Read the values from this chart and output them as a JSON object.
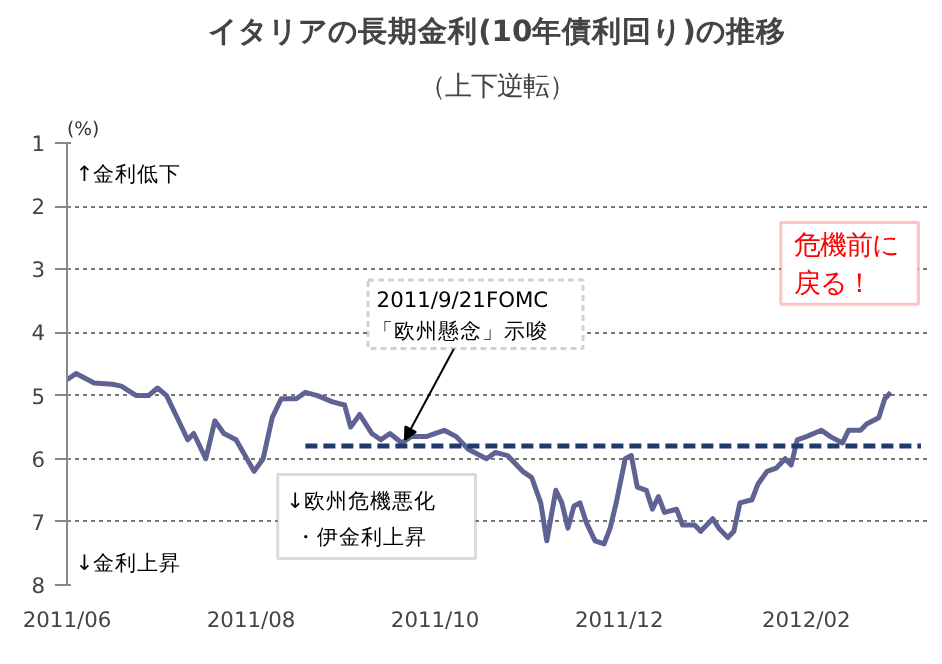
{
  "chart_data": {
    "type": "line",
    "title": "イタリアの長期金利(10年債利回り)の推移",
    "subtitle": "（上下逆転）",
    "ylabel": "(%)",
    "x": [
      "2011-06-01",
      "2011-06-04",
      "2011-06-10",
      "2011-06-16",
      "2011-06-19",
      "2011-06-24",
      "2011-06-28",
      "2011-07-01",
      "2011-07-04",
      "2011-07-07",
      "2011-07-11",
      "2011-07-13",
      "2011-07-17",
      "2011-07-20",
      "2011-07-23",
      "2011-07-27",
      "2011-07-30",
      "2011-08-02",
      "2011-08-05",
      "2011-08-08",
      "2011-08-11",
      "2011-08-16",
      "2011-08-19",
      "2011-08-23",
      "2011-08-28",
      "2011-09-01",
      "2011-09-03",
      "2011-09-06",
      "2011-09-10",
      "2011-09-13",
      "2011-09-16",
      "2011-09-20",
      "2011-09-23",
      "2011-09-28",
      "2011-10-04",
      "2011-10-08",
      "2011-10-12",
      "2011-10-18",
      "2011-10-21",
      "2011-10-25",
      "2011-10-30",
      "2011-11-02",
      "2011-11-05",
      "2011-11-07",
      "2011-11-10",
      "2011-11-12",
      "2011-11-14",
      "2011-11-16",
      "2011-11-18",
      "2011-11-20",
      "2011-11-23",
      "2011-11-26",
      "2011-11-28",
      "2011-11-30",
      "2011-12-03",
      "2011-12-05",
      "2011-12-07",
      "2011-12-10",
      "2011-12-12",
      "2011-12-14",
      "2011-12-16",
      "2011-12-20",
      "2011-12-22",
      "2011-12-26",
      "2011-12-28",
      "2012-01-01",
      "2012-01-03",
      "2012-01-06",
      "2012-01-08",
      "2012-01-10",
      "2012-01-14",
      "2012-01-16",
      "2012-01-19",
      "2012-01-22",
      "2012-01-25",
      "2012-01-27",
      "2012-01-29",
      "2012-02-01",
      "2012-02-06",
      "2012-02-09",
      "2012-02-13",
      "2012-02-15",
      "2012-02-19",
      "2012-02-21",
      "2012-02-25",
      "2012-02-27",
      "2012-02-29"
    ],
    "series": [
      {
        "color": "#5f6394",
        "values": [
          4.75,
          4.65,
          4.8,
          4.82,
          4.85,
          5.0,
          5.0,
          4.88,
          5.0,
          5.3,
          5.7,
          5.6,
          6.0,
          5.4,
          5.6,
          5.7,
          5.95,
          6.2,
          6.0,
          5.35,
          5.05,
          5.05,
          4.95,
          5.0,
          5.1,
          5.15,
          5.5,
          5.3,
          5.6,
          5.7,
          5.6,
          5.75,
          5.65,
          5.65,
          5.55,
          5.65,
          5.85,
          6.0,
          5.9,
          5.95,
          6.2,
          6.3,
          6.7,
          7.3,
          6.5,
          6.7,
          7.1,
          6.75,
          6.7,
          7.0,
          7.3,
          7.35,
          7.1,
          6.7,
          6.0,
          5.95,
          6.45,
          6.5,
          6.8,
          6.6,
          6.85,
          6.8,
          7.05,
          7.05,
          7.15,
          6.95,
          7.1,
          7.25,
          7.15,
          6.7,
          6.65,
          6.4,
          6.2,
          6.15,
          6.0,
          6.1,
          5.7,
          5.65,
          5.55,
          5.65,
          5.75,
          5.55,
          5.55,
          5.45,
          5.35,
          5.05,
          4.95
        ]
      },
      {
        "color": "#1f3a6e",
        "line_style": "dashed",
        "x": [
          "2011-08-19",
          "2012-03-10"
        ],
        "values": [
          5.8,
          5.8
        ]
      }
    ],
    "xlim": [
      "2011-06-01",
      "2012-03-12"
    ],
    "ylim": [
      8,
      1
    ],
    "xticks": [
      {
        "value": "2011-06-01",
        "label": "2011/06"
      },
      {
        "value": "2011-08-01",
        "label": "2011/08"
      },
      {
        "value": "2011-10-01",
        "label": "2011/10"
      },
      {
        "value": "2011-12-01",
        "label": "2011/12"
      },
      {
        "value": "2012-02-01",
        "label": "2012/02"
      }
    ],
    "yticks": [
      1,
      2,
      3,
      4,
      5,
      6,
      7,
      8
    ],
    "grid": "y",
    "line_style": "solid",
    "marker": "none",
    "annotations": [
      "↑金利低下",
      "↓金利上昇",
      "↓欧州危機悪化",
      "・伊金利上昇",
      "2011/9/21FOMC",
      {
        "text": "「欧州懸念」示唆",
        "x": "2011-09-21",
        "y": 5.7
      },
      "危機前に",
      "戻る！"
    ]
  }
}
